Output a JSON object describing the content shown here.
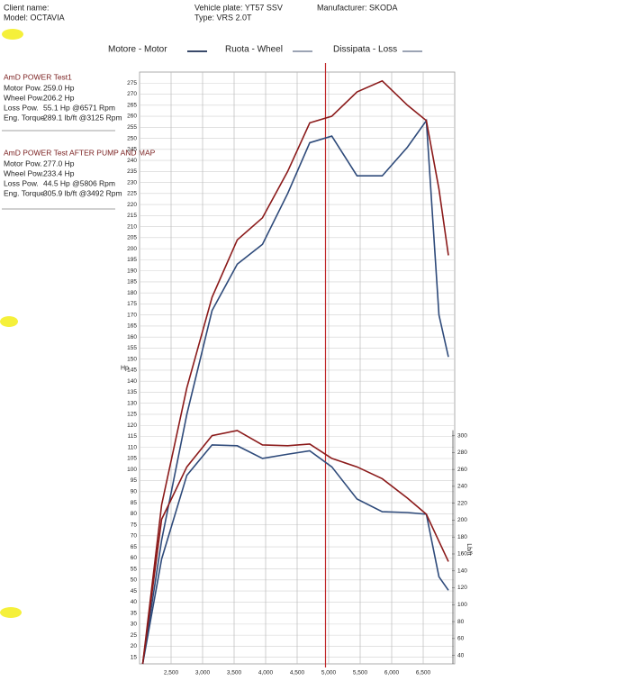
{
  "header": {
    "client": "Client name:",
    "model": "Model: OCTAVIA",
    "plate": "Vehicle plate: YT57 SSV",
    "vtype": "Type: VRS 2.0T",
    "manufacturer": "Manufacturer: SKODA"
  },
  "legend": [
    "Motore - Motor",
    "Ruota - Wheel",
    "Dissipata - Loss"
  ],
  "runs": [
    {
      "rows": [
        [
          "Motor Pow.",
          "259.0 Hp"
        ],
        [
          "Wheel Pow.",
          "206.2 Hp"
        ],
        [
          "Loss Pow.",
          "55.1 Hp @6571 Rpm"
        ],
        [
          "Eng. Torque",
          "289.1 lb/ft @3125 Rpm"
        ]
      ]
    },
    {
      "rows": [
        [
          "Motor Pow.",
          "277.0 Hp"
        ],
        [
          "Wheel Pow.",
          "233.4 Hp"
        ],
        [
          "Loss Pow.",
          "44.5 Hp @5806 Rpm"
        ],
        [
          "Eng. Torque",
          "305.9 lb/ft @3492 Rpm"
        ]
      ]
    }
  ],
  "chart_data": {
    "type": "line",
    "y_label": "Hp",
    "y2_label": "Lb/ft",
    "x": [
      2050,
      2350,
      2750,
      3150,
      3550,
      3950,
      4350,
      4700,
      5050,
      5450,
      5850,
      6250,
      6550,
      6750,
      6900
    ],
    "series": [
      {
        "name": "AmD POWER Test1",
        "color": "#2e4a7a",
        "values": [
          12,
          68,
          125,
          172,
          193,
          202,
          225,
          248,
          251,
          233,
          233,
          246,
          258,
          170,
          151
        ]
      },
      {
        "name": "AmD POWER Test AFTER PUMP AND MAP",
        "color": "#8b1a1a",
        "values": [
          12,
          84,
          137,
          178,
          204,
          214,
          235,
          257,
          260,
          271,
          276,
          265,
          258,
          227,
          197
        ]
      },
      {
        "color": "#2e4a7a",
        "axis": "y2",
        "values": [
          30,
          154,
          253,
          289,
          288,
          273,
          278,
          282,
          263,
          225,
          210,
          209,
          207,
          133,
          117
        ]
      },
      {
        "color": "#8b1a1a",
        "axis": "y2",
        "values": [
          30,
          201,
          263,
          300,
          306,
          289,
          288,
          290,
          273,
          263,
          249,
          226,
          207,
          175,
          151
        ]
      }
    ],
    "xlim": [
      2000,
      7000
    ],
    "xticks": [
      {
        "value": 2500,
        "label": "2,500"
      },
      {
        "value": 3000,
        "label": "3,000"
      },
      {
        "value": 3500,
        "label": "3,500"
      },
      {
        "value": 4000,
        "label": "4,000"
      },
      {
        "value": 4500,
        "label": "4,500"
      },
      {
        "value": 5000,
        "label": "5,000"
      },
      {
        "value": 5500,
        "label": "5,500"
      },
      {
        "value": 6000,
        "label": "6,000"
      },
      {
        "value": 6500,
        "label": "6,500"
      }
    ],
    "ylim": [
      12,
      280
    ],
    "yticks": [
      15,
      20,
      25,
      30,
      35,
      40,
      45,
      50,
      55,
      60,
      65,
      70,
      75,
      80,
      85,
      90,
      95,
      100,
      105,
      110,
      115,
      120,
      125,
      130,
      135,
      140,
      145,
      150,
      155,
      160,
      165,
      170,
      175,
      180,
      185,
      190,
      195,
      200,
      205,
      210,
      215,
      220,
      225,
      230,
      235,
      240,
      245,
      250,
      255,
      260,
      265,
      270,
      275
    ],
    "y2lim": [
      30,
      730
    ],
    "y2ticks": [
      40,
      60,
      80,
      100,
      120,
      140,
      160,
      180,
      200,
      220,
      240,
      260,
      280,
      300
    ],
    "vline": 4950,
    "vline_color": "#c0282a",
    "grid": true
  }
}
